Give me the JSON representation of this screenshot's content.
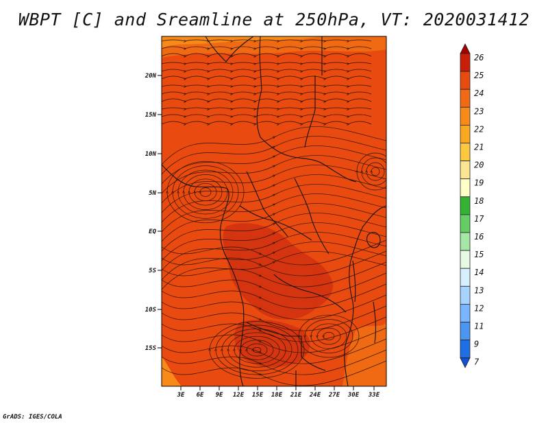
{
  "title": "WBPT [C] and Sreamline at 250hPa, VT: 2020031412",
  "footer": "GrADS: IGES/COLA",
  "map": {
    "lat_labels": [
      "20N",
      "15N",
      "10N",
      "5N",
      "EQ",
      "5S",
      "10S",
      "15S"
    ],
    "lon_labels": [
      "3E",
      "6E",
      "9E",
      "12E",
      "15E",
      "18E",
      "21E",
      "24E",
      "27E",
      "30E",
      "33E"
    ],
    "base_fill_color": "#e84a10",
    "field_colors": {
      "24": "#e8460e",
      "25": "#c8210a",
      "23": "#f06a14",
      "22": "#f78a18"
    },
    "streamline_color": "#2a1400",
    "coastline_color": "#111111"
  },
  "colorbar": {
    "labels": [
      "26",
      "25",
      "24",
      "23",
      "22",
      "21",
      "20",
      "19",
      "18",
      "17",
      "16",
      "15",
      "14",
      "13",
      "12",
      "11",
      "9",
      "7"
    ],
    "colors": [
      "#a50000",
      "#c81e0a",
      "#e84a10",
      "#f06a14",
      "#f78a18",
      "#faa820",
      "#fcc840",
      "#fce590",
      "#ffffc8",
      "#34b234",
      "#66cc66",
      "#a6e6a6",
      "#e6fae6",
      "#d6f0ff",
      "#a6d4ff",
      "#7ab6ff",
      "#4a96f0",
      "#1e6ee6",
      "#1450d2"
    ]
  }
}
